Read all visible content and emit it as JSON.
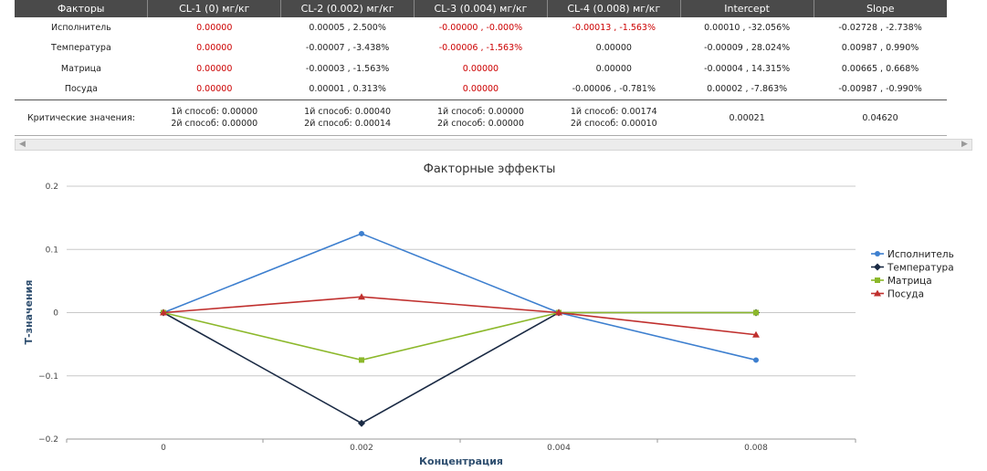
{
  "table": {
    "headers": [
      "Факторы",
      "CL-1 (0) мг/кг",
      "CL-2 (0.002) мг/кг",
      "CL-3 (0.004) мг/кг",
      "CL-4 (0.008) мг/кг",
      "Intercept",
      "Slope"
    ],
    "rows": [
      {
        "cells": [
          "Исполнитель",
          "0.00000",
          "0.00005 , 2.500%",
          "-0.00000 , -0.000%",
          "-0.00013 , -1.563%",
          "0.00010 , -32.056%",
          "-0.02728 , -2.738%"
        ],
        "red": [
          false,
          true,
          false,
          true,
          true,
          false,
          false
        ]
      },
      {
        "cells": [
          "Температура",
          "0.00000",
          "-0.00007 , -3.438%",
          "-0.00006 , -1.563%",
          "0.00000",
          "-0.00009 , 28.024%",
          "0.00987 , 0.990%"
        ],
        "red": [
          false,
          true,
          false,
          true,
          false,
          false,
          false
        ]
      },
      {
        "cells": [
          "Матрица",
          "0.00000",
          "-0.00003 , -1.563%",
          "0.00000",
          "0.00000",
          "-0.00004 , 14.315%",
          "0.00665 , 0.668%"
        ],
        "red": [
          false,
          true,
          false,
          true,
          false,
          false,
          false
        ]
      },
      {
        "cells": [
          "Посуда",
          "0.00000",
          "0.00001 , 0.313%",
          "0.00000",
          "-0.00006 , -0.781%",
          "0.00002 , -7.863%",
          "-0.00987 , -0.990%"
        ],
        "red": [
          false,
          true,
          false,
          true,
          false,
          false,
          false
        ]
      }
    ],
    "critical": {
      "label": "Критические значения:",
      "cells": [
        [
          "1й способ: 0.00000",
          "2й способ: 0.00000"
        ],
        [
          "1й способ: 0.00040",
          "2й способ: 0.00014"
        ],
        [
          "1й способ: 0.00000",
          "2й способ: 0.00000"
        ],
        [
          "1й способ: 0.00174",
          "2й способ: 0.00010"
        ],
        [
          "0.00021"
        ],
        [
          "0.04620"
        ]
      ]
    }
  },
  "scrollbar": {
    "left_arrow": "◀",
    "right_arrow": "▶"
  },
  "colors": {
    "header_bg": "#4a4a4a",
    "red_value": "#cc0000"
  },
  "chart_data": {
    "type": "line",
    "title": "Факторные эффекты",
    "xlabel": "Концентрация",
    "ylabel": "Т-значения",
    "categories": [
      "0",
      "0.002",
      "0.004",
      "0.008"
    ],
    "ylim": [
      -0.2,
      0.2
    ],
    "yticks": [
      -0.2,
      -0.1,
      0,
      0.1,
      0.2
    ],
    "ytick_labels": [
      "−0.2",
      "−0.1",
      "0",
      "0.1",
      "0.2"
    ],
    "grid": true,
    "legend_position": "right",
    "series": [
      {
        "name": "Исполнитель",
        "values": [
          0,
          0.125,
          0,
          -0.075
        ],
        "color": "#3d7fcf",
        "marker": "circle"
      },
      {
        "name": "Температура",
        "values": [
          0,
          -0.175,
          0,
          0
        ],
        "color": "#1a2a44",
        "marker": "diamond"
      },
      {
        "name": "Матрица",
        "values": [
          0,
          -0.075,
          0,
          0
        ],
        "color": "#8cb82b",
        "marker": "square"
      },
      {
        "name": "Посуда",
        "values": [
          0,
          0.025,
          0,
          -0.035
        ],
        "color": "#c0302e",
        "marker": "triangle"
      }
    ]
  }
}
